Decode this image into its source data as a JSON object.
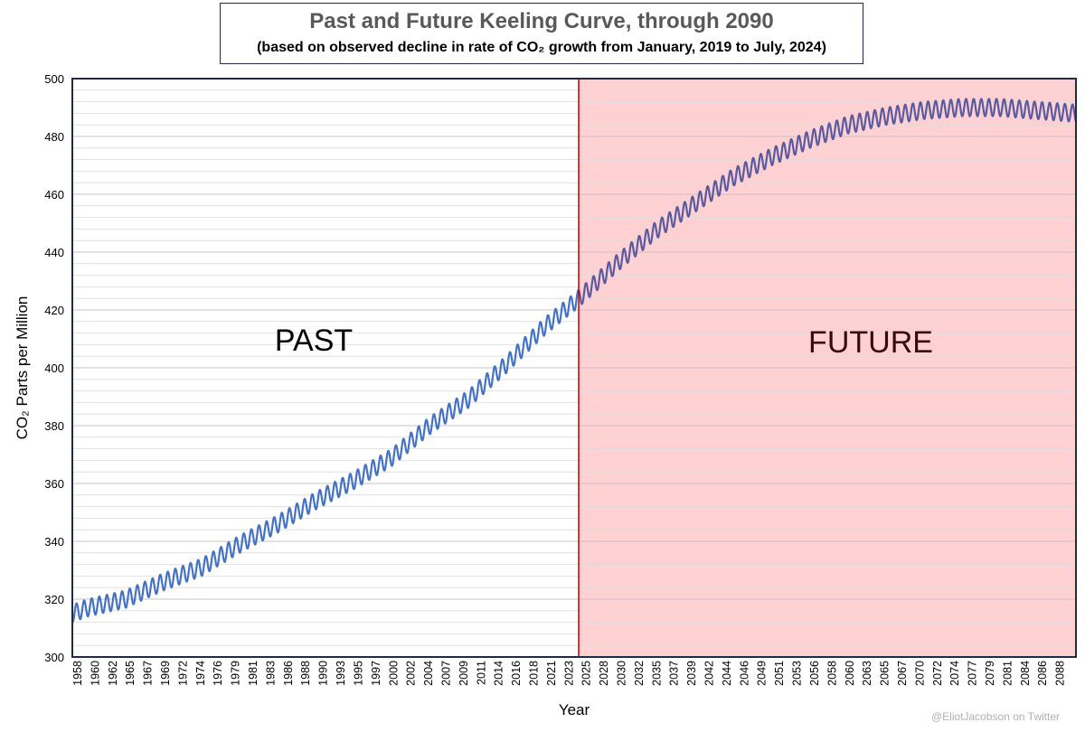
{
  "chart_data": {
    "type": "line",
    "title": "Past and Future Keeling Curve, through 2090",
    "subtitle": "(based on observed decline in rate of CO₂ growth from January, 2019 to July, 2024)",
    "xlabel": "Year",
    "ylabel": "CO₂ Parts per Million",
    "xlim": [
      1958,
      2090
    ],
    "ylim": [
      300,
      500
    ],
    "y_ticks": [
      300,
      320,
      340,
      360,
      380,
      400,
      420,
      440,
      460,
      480,
      500
    ],
    "x_tick_labels": [
      "1958",
      "1960",
      "1962",
      "1965",
      "1967",
      "1969",
      "1972",
      "1974",
      "1976",
      "1979",
      "1981",
      "1983",
      "1986",
      "1988",
      "1990",
      "1993",
      "1995",
      "1997",
      "2000",
      "2002",
      "2004",
      "2007",
      "2009",
      "2011",
      "2014",
      "2016",
      "2018",
      "2021",
      "2023",
      "2025",
      "2028",
      "2030",
      "2032",
      "2035",
      "2037",
      "2039",
      "2042",
      "2044",
      "2046",
      "2049",
      "2051",
      "2053",
      "2056",
      "2058",
      "2060",
      "2063",
      "2065",
      "2067",
      "2070",
      "2072",
      "2074",
      "2077",
      "2079",
      "2081",
      "2084",
      "2086",
      "2088"
    ],
    "divider_year": 2024.6,
    "past_label": "PAST",
    "future_label": "FUTURE",
    "seasonal_amplitude": 3,
    "series": [
      {
        "segment": "past",
        "color": "#4472c4",
        "x": [
          1958,
          1960,
          1965,
          1970,
          1975,
          1980,
          1985,
          1990,
          1995,
          2000,
          2005,
          2010,
          2015,
          2020,
          2024.6
        ],
        "y": [
          315,
          317,
          320,
          326,
          331,
          339,
          346,
          354,
          361,
          369,
          380,
          389,
          401,
          414,
          424
        ]
      },
      {
        "segment": "future",
        "color": "#5a5aa0",
        "x": [
          2024.6,
          2030,
          2035,
          2040,
          2045,
          2050,
          2055,
          2060,
          2065,
          2070,
          2075,
          2080,
          2085,
          2090
        ],
        "y": [
          424,
          437,
          448,
          457,
          466,
          473,
          479,
          484,
          487,
          489,
          490,
          490,
          489,
          488
        ]
      }
    ],
    "colors": {
      "past_line": "#4472c4",
      "future_line": "#5a5aa0",
      "future_fill": "#ffd1d3",
      "divider": "#c00000",
      "frame": "#1f2a44"
    }
  },
  "watermark": "@EliotJacobson on Twitter"
}
